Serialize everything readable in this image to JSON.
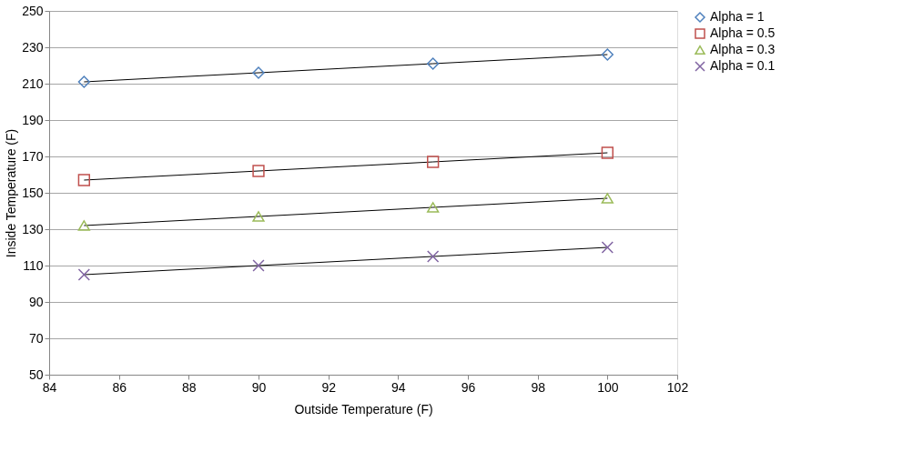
{
  "chart_data": {
    "type": "scatter",
    "xlabel": "Outside Temperature (F)",
    "ylabel": "Inside Temperature (F)",
    "x": [
      85,
      90,
      95,
      100
    ],
    "series": [
      {
        "name": "Alpha = 1",
        "color": "#4f81bd",
        "marker": "diamond",
        "values": [
          211,
          216,
          221,
          226
        ]
      },
      {
        "name": "Alpha = 0.5",
        "color": "#c0504d",
        "marker": "square",
        "values": [
          157,
          162,
          167,
          172
        ]
      },
      {
        "name": "Alpha = 0.3",
        "color": "#9bbb59",
        "marker": "triangle",
        "values": [
          132,
          137,
          142,
          147
        ]
      },
      {
        "name": "Alpha = 0.1",
        "color": "#8064a2",
        "marker": "cross",
        "values": [
          105,
          110,
          115,
          120
        ]
      },
      {
        "type": "line",
        "color": "#000000",
        "x": [
          85,
          90,
          95,
          100
        ],
        "values": [
          211,
          216,
          221,
          226
        ]
      },
      {
        "type": "line",
        "color": "#000000",
        "x": [
          85,
          90,
          95,
          100
        ],
        "values": [
          157,
          162,
          167,
          172
        ]
      },
      {
        "type": "line",
        "color": "#000000",
        "x": [
          85,
          90,
          95,
          100
        ],
        "values": [
          132,
          137,
          142,
          147
        ]
      },
      {
        "type": "line",
        "color": "#000000",
        "x": [
          85,
          90,
          95,
          100
        ],
        "values": [
          105,
          110,
          115,
          120
        ]
      }
    ],
    "xlim": [
      84,
      102
    ],
    "xticks": [
      84,
      86,
      88,
      90,
      92,
      94,
      96,
      98,
      100,
      102
    ],
    "ylim": [
      50,
      250
    ],
    "yticks": [
      50,
      70,
      90,
      110,
      130,
      150,
      170,
      190,
      210,
      230,
      250
    ],
    "grid": "y",
    "legend": "right"
  }
}
